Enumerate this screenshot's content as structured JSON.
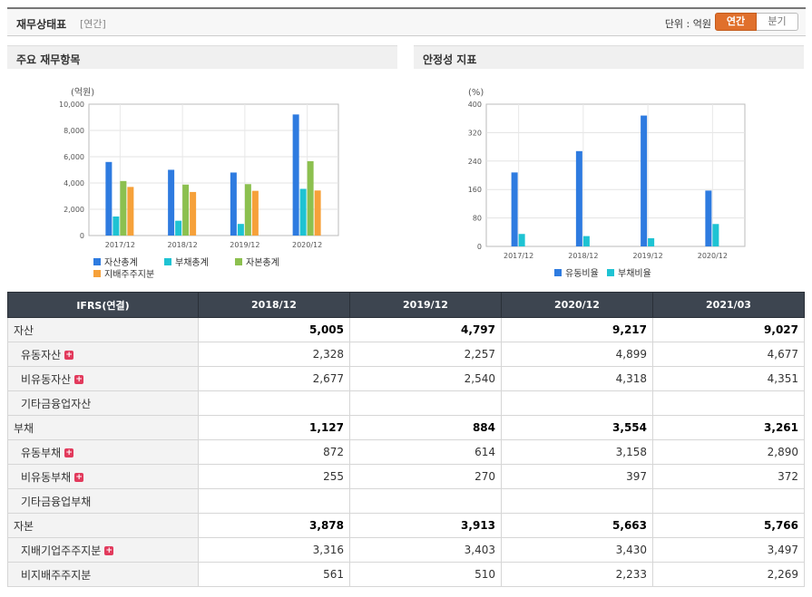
{
  "header": {
    "title": "재무상태표",
    "period": "[연간]",
    "unit_label": "단위 : 억원",
    "tabs": [
      "연간",
      "분기"
    ]
  },
  "colors": {
    "blue": "#2e7be0",
    "cyan": "#1ec3d3",
    "green": "#8cc04f",
    "orange": "#f6a13a"
  },
  "chart_data": [
    {
      "type": "bar",
      "title": "주요 재무항목",
      "ylabel": "(억원)",
      "ylim": [
        0,
        10000
      ],
      "yticks": [
        "10,000",
        "8,000",
        "6,000",
        "4,000",
        "2,000",
        "0"
      ],
      "categories": [
        "2017/12",
        "2018/12",
        "2019/12",
        "2020/12"
      ],
      "series": [
        {
          "name": "자산총계",
          "color": "#2e7be0",
          "values": [
            5600,
            5005,
            4797,
            9217
          ]
        },
        {
          "name": "부채총계",
          "color": "#1ec3d3",
          "values": [
            1450,
            1127,
            884,
            3554
          ]
        },
        {
          "name": "자본총계",
          "color": "#8cc04f",
          "values": [
            4150,
            3878,
            3913,
            5663
          ]
        },
        {
          "name": "지배주주지분",
          "color": "#f6a13a",
          "values": [
            3700,
            3316,
            3403,
            3430
          ]
        }
      ],
      "legend": "bottom"
    },
    {
      "type": "bar",
      "title": "안정성 지표",
      "ylabel": "(%)",
      "ylim": [
        0,
        400
      ],
      "yticks": [
        "400",
        "320",
        "240",
        "160",
        "80",
        "0"
      ],
      "categories": [
        "2017/12",
        "2018/12",
        "2019/12",
        "2020/12"
      ],
      "series": [
        {
          "name": "유동비율",
          "color": "#2e7be0",
          "values": [
            208,
            268,
            368,
            157
          ]
        },
        {
          "name": "부채비율",
          "color": "#1ec3d3",
          "values": [
            35,
            29,
            23,
            63
          ]
        }
      ],
      "legend": "bottom"
    }
  ],
  "table": {
    "columns": [
      "IFRS(연결)",
      "2018/12",
      "2019/12",
      "2020/12",
      "2021/03"
    ],
    "rows": [
      {
        "label": "자산",
        "main": true,
        "plus": false,
        "values": [
          "5,005",
          "4,797",
          "9,217",
          "9,027"
        ]
      },
      {
        "label": "유동자산",
        "main": false,
        "plus": true,
        "values": [
          "2,328",
          "2,257",
          "4,899",
          "4,677"
        ]
      },
      {
        "label": "비유동자산",
        "main": false,
        "plus": true,
        "values": [
          "2,677",
          "2,540",
          "4,318",
          "4,351"
        ]
      },
      {
        "label": "기타금융업자산",
        "main": false,
        "plus": false,
        "values": [
          "",
          "",
          "",
          ""
        ]
      },
      {
        "label": "부채",
        "main": true,
        "plus": false,
        "values": [
          "1,127",
          "884",
          "3,554",
          "3,261"
        ]
      },
      {
        "label": "유동부채",
        "main": false,
        "plus": true,
        "values": [
          "872",
          "614",
          "3,158",
          "2,890"
        ]
      },
      {
        "label": "비유동부채",
        "main": false,
        "plus": true,
        "values": [
          "255",
          "270",
          "397",
          "372"
        ]
      },
      {
        "label": "기타금융업부채",
        "main": false,
        "plus": false,
        "values": [
          "",
          "",
          "",
          ""
        ]
      },
      {
        "label": "자본",
        "main": true,
        "plus": false,
        "values": [
          "3,878",
          "3,913",
          "5,663",
          "5,766"
        ]
      },
      {
        "label": "지배기업주주지분",
        "main": false,
        "plus": true,
        "values": [
          "3,316",
          "3,403",
          "3,430",
          "3,497"
        ]
      },
      {
        "label": "비지배주주지분",
        "main": false,
        "plus": false,
        "values": [
          "561",
          "510",
          "2,233",
          "2,269"
        ]
      }
    ]
  }
}
